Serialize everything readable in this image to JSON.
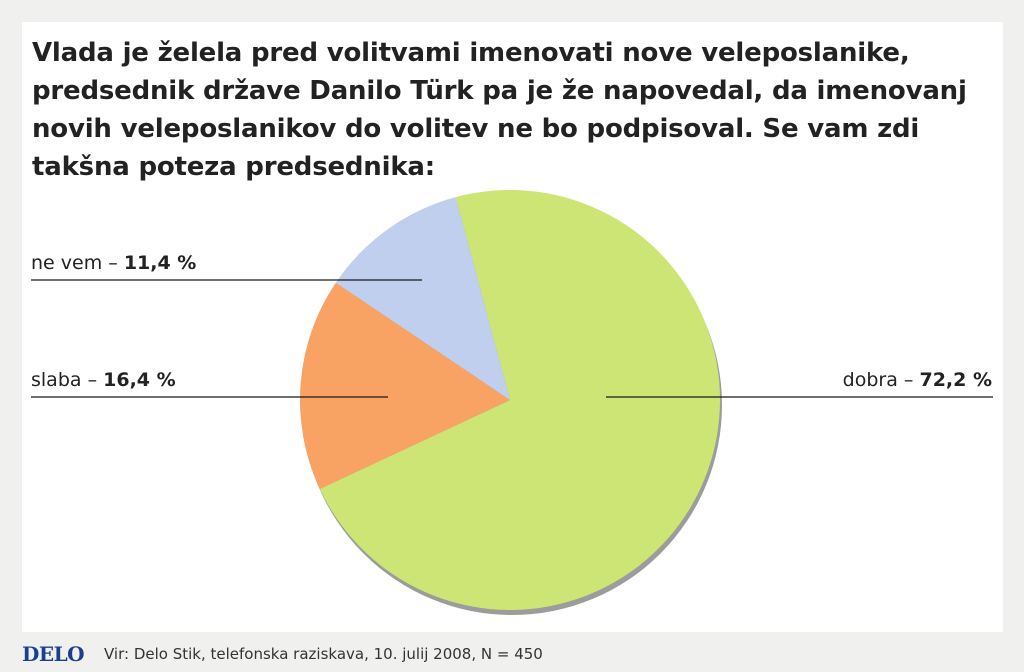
{
  "title": "Vlada je želela pred volitvami imenovati nove veleposlanike, predsednik države Danilo Türk pa je že napovedal, da imenovanj novih veleposlanikov do volitev ne bo podpisoval. Se vam zdi takšna poteza predsednika:",
  "footer": {
    "logo": "DELO",
    "source": "Vir: Delo Stik, telefonska raziskava, 10. julij 2008, N = 450"
  },
  "chart_data": {
    "type": "pie",
    "title": "Vlada je želela pred volitvami imenovati nove veleposlanike, predsednik države Danilo Türk pa je že napovedal, da imenovanj novih veleposlanikov do volitev ne bo podpisoval. Se vam zdi takšna poteza predsednika:",
    "slices": [
      {
        "label": "dobra",
        "value": 72.2,
        "value_label": "72,2 %",
        "color": "#cde574"
      },
      {
        "label": "slaba",
        "value": 16.4,
        "value_label": "16,4 %",
        "color": "#f8a263"
      },
      {
        "label": "ne vem",
        "value": 11.4,
        "value_label": "11,4 %",
        "color": "#c1cfee"
      }
    ]
  }
}
